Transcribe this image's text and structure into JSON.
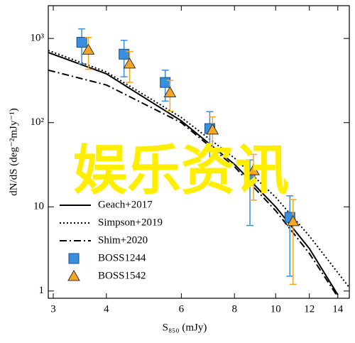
{
  "chart_data": {
    "type": "scatter_line",
    "xlabel": "S₈₅₀ (mJy)",
    "ylabel": "dN/dS (deg⁻²mJy⁻¹)",
    "xlog": true,
    "ylog": true,
    "xlim": [
      2.92,
      14.9
    ],
    "ylim": [
      0.82,
      2450
    ],
    "xticks": [
      3,
      4,
      6,
      8,
      10,
      12,
      14
    ],
    "yticks": [
      1,
      10,
      {
        "value": 100,
        "label": "10²"
      },
      {
        "value": 1000,
        "label": "10³"
      }
    ],
    "legend": "lower left",
    "lines": [
      {
        "name": "Geach+2017",
        "color": "#000000",
        "dash": "solid",
        "x": [
          2.92,
          4,
          6,
          8,
          10,
          12,
          14
        ],
        "values": [
          680,
          380,
          105,
          32,
          10,
          3.2,
          0.9
        ]
      },
      {
        "name": "Simpson+2019",
        "color": "#000000",
        "dash": "dotted",
        "x": [
          2.92,
          4,
          6,
          8,
          10,
          12,
          14.9
        ],
        "values": [
          720,
          400,
          115,
          38,
          13,
          4.5,
          1.1
        ]
      },
      {
        "name": "Shim+2020",
        "color": "#000000",
        "dash": "dashdot",
        "x": [
          2.92,
          4,
          6,
          8,
          10,
          12,
          14
        ],
        "values": [
          420,
          280,
          100,
          30,
          9,
          2.8,
          0.85
        ]
      }
    ],
    "series": [
      {
        "name": "BOSS1244",
        "color": "#3a8fdc",
        "marker": "square",
        "x": [
          3.5,
          4.4,
          5.5,
          7.0,
          8.7,
          10.8
        ],
        "values": [
          900,
          650,
          300,
          85,
          21,
          7.5
        ],
        "errors": [
          400,
          300,
          120,
          50,
          15,
          6
        ]
      },
      {
        "name": "BOSS1542",
        "color": "#f5a623",
        "marker": "triangle",
        "x": [
          3.6,
          4.5,
          5.6,
          7.05,
          8.8,
          10.9
        ],
        "values": [
          730,
          500,
          227,
          82,
          27,
          6.7
        ],
        "errors": [
          300,
          200,
          90,
          35,
          15,
          5.5
        ]
      }
    ],
    "overlay_text": "娱乐资讯",
    "overlay_color": "#ffee00"
  }
}
